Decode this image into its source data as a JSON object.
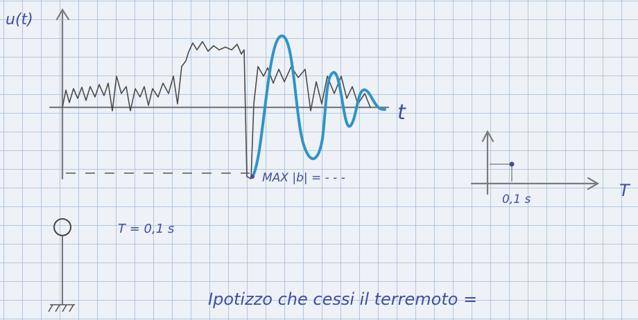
{
  "y_axis_label": "u(t)",
  "x_axis_label": "t",
  "max_note": "MAX |b| = - - -",
  "inset": {
    "axis_label": "T",
    "tick_label": "0,1 s"
  },
  "oscillator": {
    "label": "T = 0,1 s"
  },
  "text_line": "Ipotizzo che cessi il terremoto ="
}
